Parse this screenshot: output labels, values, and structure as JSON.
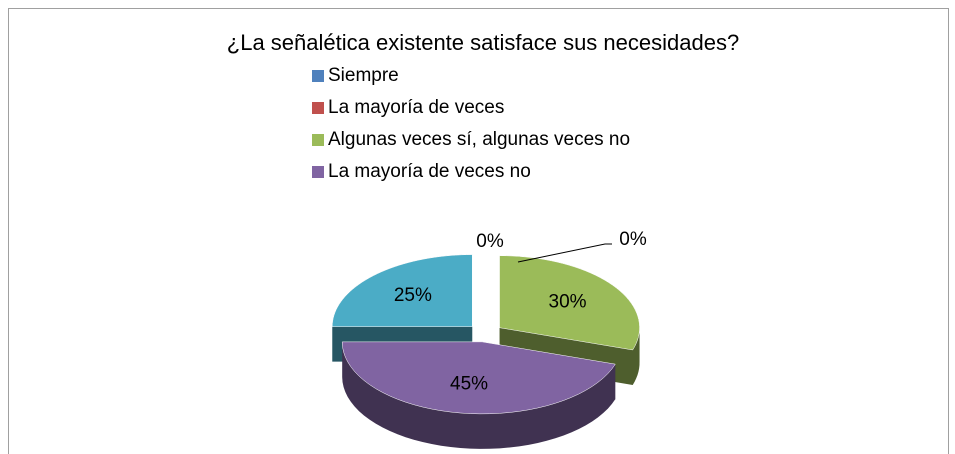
{
  "chart_data": {
    "type": "pie3d",
    "title": "¿La señalética existente satisface sus necesidades?",
    "categories": [
      "Siempre",
      "La mayoría de veces",
      "Algunas veces sí, algunas veces no",
      "La mayoría de veces no",
      null
    ],
    "values": [
      0,
      0,
      30,
      45,
      25
    ],
    "value_labels": [
      "0%",
      "0%",
      "30%",
      "45%",
      "25%"
    ],
    "colors": [
      "#4f81bd",
      "#c0504d",
      "#9bbb59",
      "#8064a2",
      "#4bacc6"
    ],
    "legend": "top"
  }
}
